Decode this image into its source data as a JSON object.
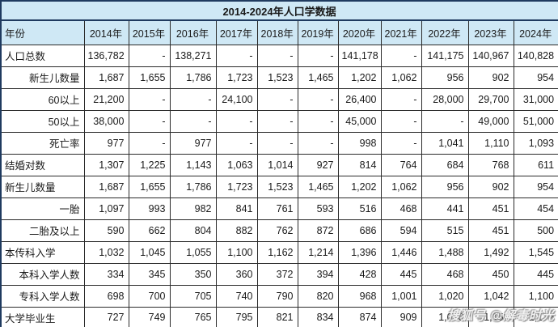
{
  "title": "2014-2024年人口学数据",
  "watermark": "搜狐号 @解毒时光",
  "colors": {
    "header_bg": "#cfe8f5",
    "outer_border": "#1f3a5f",
    "inner_border": "#2b2b2b"
  },
  "table": {
    "corner_label": "年份",
    "year_headers": [
      "2014年",
      "2015年",
      "2016年",
      "2017年",
      "2018年",
      "2019年",
      "2020年",
      "2021年",
      "2022年",
      "2023年",
      "2024年"
    ],
    "rows": [
      {
        "label": "人口总数",
        "indent": false,
        "values": [
          "136,782",
          "-",
          "138,271",
          "-",
          "-",
          "-",
          "141,178",
          "-",
          "141,175",
          "140,967",
          "140,828"
        ]
      },
      {
        "label": "新生儿数量",
        "indent": true,
        "values": [
          "1,687",
          "1,655",
          "1,786",
          "1,723",
          "1,523",
          "1,465",
          "1,202",
          "1,062",
          "956",
          "902",
          "954"
        ]
      },
      {
        "label": "60以上",
        "indent": true,
        "values": [
          "21,200",
          "-",
          "-",
          "24,100",
          "-",
          "-",
          "26,400",
          "-",
          "28,000",
          "29,700",
          "31,000"
        ]
      },
      {
        "label": "50以上",
        "indent": true,
        "values": [
          "38,000",
          "-",
          "-",
          "-",
          "-",
          "-",
          "45,000",
          "-",
          "-",
          "49,000",
          "51,000"
        ]
      },
      {
        "label": "死亡率",
        "indent": true,
        "values": [
          "977",
          "-",
          "977",
          "-",
          "-",
          "-",
          "998",
          "-",
          "1,041",
          "1,110",
          "1,093"
        ]
      },
      {
        "label": "结婚对数",
        "indent": false,
        "values": [
          "1,307",
          "1,225",
          "1,143",
          "1,063",
          "1,014",
          "927",
          "814",
          "764",
          "684",
          "768",
          "611"
        ]
      },
      {
        "label": "新生儿数量",
        "indent": false,
        "values": [
          "1,687",
          "1,655",
          "1,786",
          "1,723",
          "1,523",
          "1,465",
          "1,202",
          "1,062",
          "956",
          "902",
          "954"
        ]
      },
      {
        "label": "一胎",
        "indent": true,
        "values": [
          "1,097",
          "993",
          "982",
          "841",
          "761",
          "593",
          "516",
          "468",
          "441",
          "451",
          "454"
        ]
      },
      {
        "label": "二胎及以上",
        "indent": true,
        "values": [
          "590",
          "662",
          "804",
          "882",
          "762",
          "872",
          "686",
          "594",
          "515",
          "451",
          "500"
        ]
      },
      {
        "label": "本传科入学",
        "indent": false,
        "values": [
          "1,032",
          "1,045",
          "1,055",
          "1,100",
          "1,162",
          "1,214",
          "1,396",
          "1,446",
          "1,488",
          "1,492",
          "1,545"
        ]
      },
      {
        "label": "本科入学人数",
        "indent": true,
        "values": [
          "334",
          "345",
          "350",
          "360",
          "372",
          "394",
          "428",
          "445",
          "468",
          "450",
          "445"
        ]
      },
      {
        "label": "专科入学人数",
        "indent": true,
        "values": [
          "698",
          "700",
          "705",
          "740",
          "790",
          "820",
          "968",
          "1,001",
          "1,020",
          "1,042",
          "1,100"
        ]
      },
      {
        "label": "大学毕业生",
        "indent": false,
        "values": [
          "727",
          "749",
          "765",
          "795",
          "821",
          "834",
          "874",
          "909",
          "1,076",
          "1,158",
          "1,179"
        ]
      }
    ]
  },
  "chart_data": {
    "type": "table",
    "title": "2014-2024年人口学数据",
    "columns": [
      "年份",
      "2014年",
      "2015年",
      "2016年",
      "2017年",
      "2018年",
      "2019年",
      "2020年",
      "2021年",
      "2022年",
      "2023年",
      "2024年"
    ],
    "rows": [
      [
        "人口总数",
        136782,
        null,
        138271,
        null,
        null,
        null,
        141178,
        null,
        141175,
        140967,
        140828
      ],
      [
        "新生儿数量",
        1687,
        1655,
        1786,
        1723,
        1523,
        1465,
        1202,
        1062,
        956,
        902,
        954
      ],
      [
        "60以上",
        21200,
        null,
        null,
        24100,
        null,
        null,
        26400,
        null,
        28000,
        29700,
        31000
      ],
      [
        "50以上",
        38000,
        null,
        null,
        null,
        null,
        null,
        45000,
        null,
        null,
        49000,
        51000
      ],
      [
        "死亡率",
        977,
        null,
        977,
        null,
        null,
        null,
        998,
        null,
        1041,
        1110,
        1093
      ],
      [
        "结婚对数",
        1307,
        1225,
        1143,
        1063,
        1014,
        927,
        814,
        764,
        684,
        768,
        611
      ],
      [
        "新生儿数量",
        1687,
        1655,
        1786,
        1723,
        1523,
        1465,
        1202,
        1062,
        956,
        902,
        954
      ],
      [
        "一胎",
        1097,
        993,
        982,
        841,
        761,
        593,
        516,
        468,
        441,
        451,
        454
      ],
      [
        "二胎及以上",
        590,
        662,
        804,
        882,
        762,
        872,
        686,
        594,
        515,
        451,
        500
      ],
      [
        "本传科入学",
        1032,
        1045,
        1055,
        1100,
        1162,
        1214,
        1396,
        1446,
        1488,
        1492,
        1545
      ],
      [
        "本科入学人数",
        334,
        345,
        350,
        360,
        372,
        394,
        428,
        445,
        468,
        450,
        445
      ],
      [
        "专科入学人数",
        698,
        700,
        705,
        740,
        790,
        820,
        968,
        1001,
        1020,
        1042,
        1100
      ],
      [
        "大学毕业生",
        727,
        749,
        765,
        795,
        821,
        834,
        874,
        909,
        1076,
        1158,
        1179
      ]
    ]
  }
}
